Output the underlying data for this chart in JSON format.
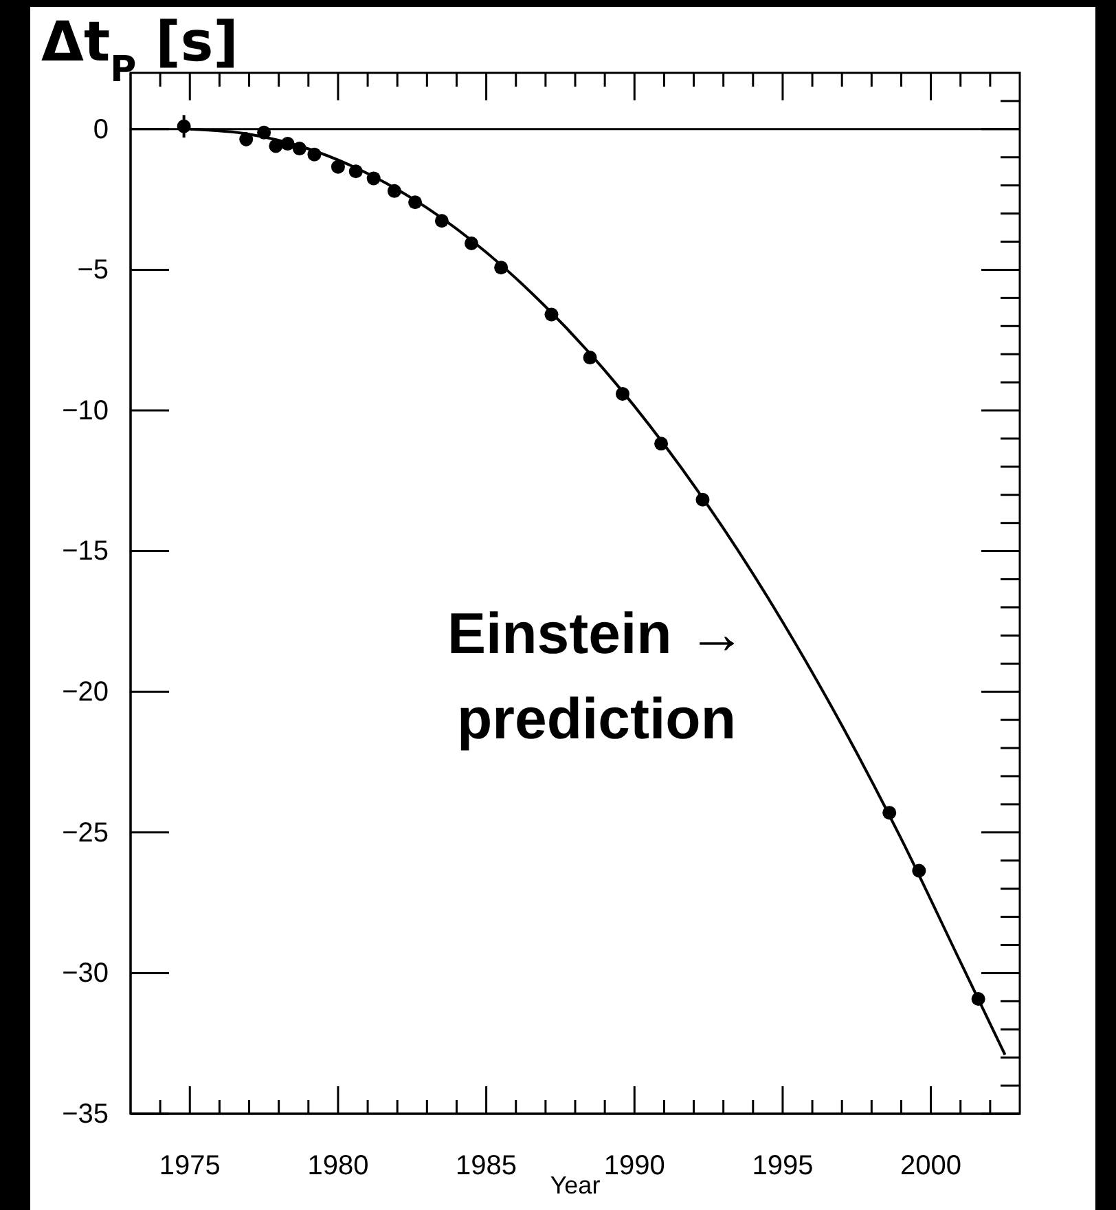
{
  "chart_data": {
    "type": "scatter",
    "xlabel": "Year",
    "ylabel": "Δt$_{P}$ [s]",
    "xlim": [
      1973,
      2003
    ],
    "ylim": [
      -35,
      2
    ],
    "xticks": [
      1975,
      1980,
      1985,
      1990,
      1995,
      2000
    ],
    "yticks": [
      0,
      {
        "value": -5,
        "label": "−5"
      },
      {
        "value": -10,
        "label": "−10"
      },
      {
        "value": -15,
        "label": "−15"
      },
      {
        "value": -20,
        "label": "−20"
      },
      {
        "value": -25,
        "label": "−25"
      },
      {
        "value": -30,
        "label": "−30"
      },
      {
        "value": -35,
        "label": "−35"
      }
    ],
    "ref_lines": [
      {
        "axis": "y",
        "value": 0,
        "color": "#000000"
      }
    ],
    "annotations": [
      "Einstein →\nprediction"
    ],
    "series": [
      {
        "color": "#000000",
        "marker": "circle",
        "x": [
          1974.8,
          1976.9,
          1977.5,
          1977.9,
          1978.3,
          1978.7,
          1979.2,
          1980.0,
          1980.6,
          1981.2,
          1981.9,
          1982.6,
          1983.5,
          1984.5,
          1985.5,
          1987.2,
          1988.5,
          1989.6,
          1990.9,
          1992.3,
          1998.6,
          1999.6,
          2001.6
        ],
        "values": [
          0.1,
          -0.36,
          -0.12,
          -0.6,
          -0.52,
          -0.69,
          -0.9,
          -1.34,
          -1.5,
          -1.75,
          -2.2,
          -2.6,
          -3.26,
          -4.06,
          -4.92,
          -6.59,
          -8.12,
          -9.41,
          -11.18,
          -13.17,
          -24.3,
          -26.36,
          -30.92
        ],
        "errors": [
          0.4,
          0.25,
          null,
          null,
          null,
          null,
          null,
          null,
          null,
          null,
          null,
          null,
          null,
          null,
          null,
          null,
          null,
          null,
          null,
          null,
          null,
          null,
          null
        ]
      },
      {
        "type": "line",
        "color": "#000000",
        "line_style": "solid",
        "x": [
          1975,
          1977,
          1979,
          1981,
          1983,
          1985,
          1987,
          1989,
          1991,
          1993,
          1995,
          1997,
          1999,
          2001,
          2002.5
        ],
        "values": [
          0,
          -0.18,
          -0.7,
          -1.58,
          -2.8,
          -4.38,
          -6.31,
          -8.58,
          -11.21,
          -14.19,
          -17.52,
          -21.2,
          -25.23,
          -29.61,
          -32.9
        ]
      }
    ]
  }
}
